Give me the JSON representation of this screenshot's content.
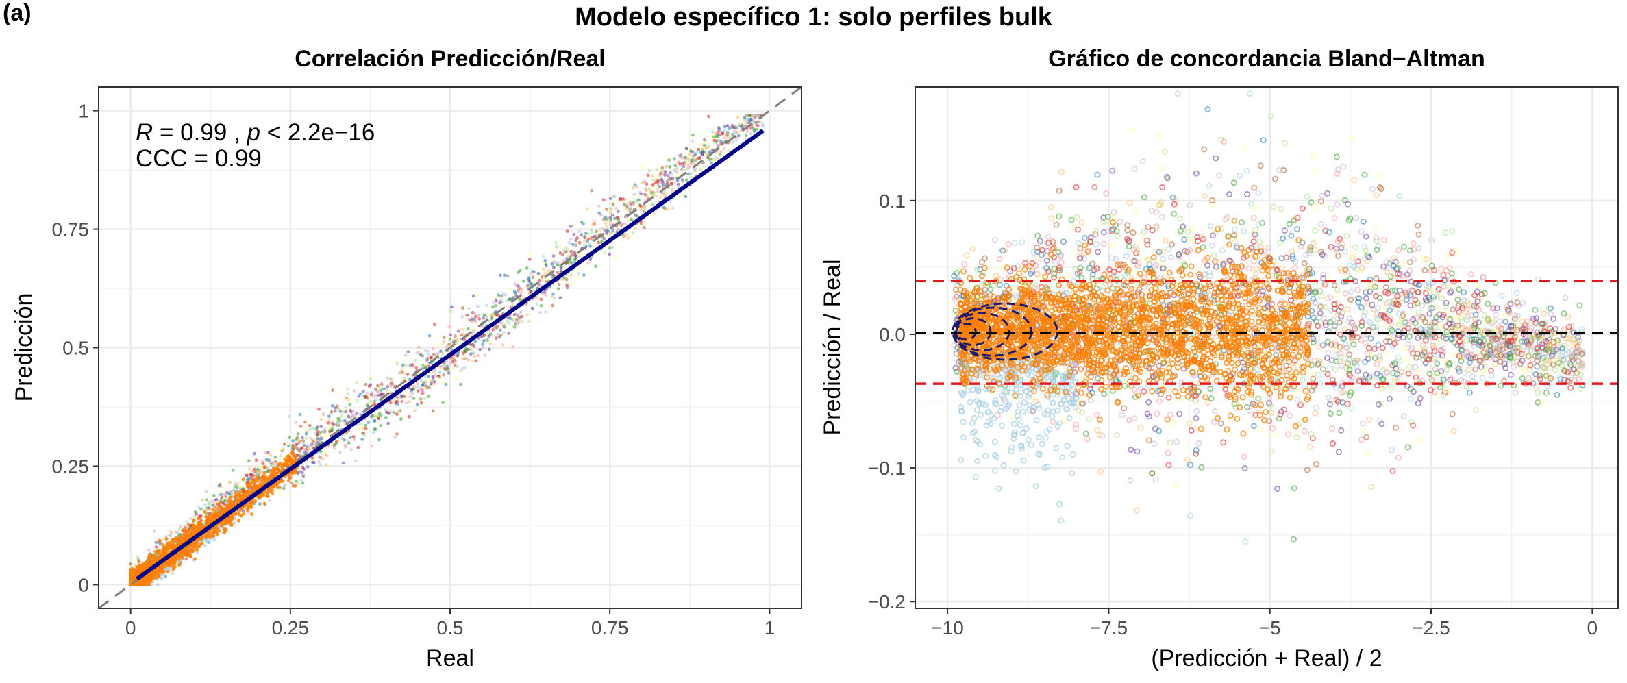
{
  "panel_tag": "(a)",
  "main_title": "Modelo específico 1: solo perfiles bulk",
  "colors": {
    "point_main": "#ff7f00",
    "point_light": "#a6cee3",
    "fit_line": "#00008b",
    "identity_line": "#7f7f7f",
    "loa_line": "#e31a1c",
    "mean_line": "#000000",
    "palette": [
      "#a6cee3",
      "#1f78b4",
      "#b2df8a",
      "#33a02c",
      "#fb9a99",
      "#e31a1c",
      "#fdbf6f",
      "#cab2d6",
      "#6a3d9a",
      "#ffff99",
      "#b15928"
    ]
  },
  "chart_data": [
    {
      "type": "scatter",
      "title": "Correlación Predicción/Real",
      "xlabel": "Real",
      "ylabel": "Predicción",
      "xlim": [
        -0.05,
        1.05
      ],
      "ylim": [
        -0.05,
        1.05
      ],
      "xticks": [
        0,
        0.25,
        0.5,
        0.75,
        1
      ],
      "xtick_labels": [
        "0",
        "0.25",
        "0.5",
        "0.75",
        "1"
      ],
      "yticks": [
        0,
        0.25,
        0.5,
        0.75,
        1
      ],
      "ytick_labels": [
        "0",
        "0.25",
        "0.5",
        "0.75",
        "1"
      ],
      "grid": true,
      "annotation": {
        "r_symbol": "R",
        "r_value": " = 0.99 , ",
        "p_symbol": "p",
        "p_value": " < 2.2e−16",
        "ccc": "CCC = 0.99"
      },
      "fit_line": {
        "x": [
          0.01,
          0.99
        ],
        "y": [
          0.012,
          0.958
        ]
      },
      "identity_line": {
        "slope": 1,
        "intercept": 0
      },
      "point_density": [
        {
          "x_range": [
            0,
            0.2
          ],
          "y_spread": 0.03,
          "dominant": "orange"
        },
        {
          "x_range": [
            0.2,
            0.6
          ],
          "y_spread": 0.05
        },
        {
          "x_range": [
            0.6,
            1.0
          ],
          "y_spread": 0.04
        }
      ]
    },
    {
      "type": "scatter",
      "title": "Gráfico de concordancia Bland−Altman",
      "xlabel": "(Predicción + Real) / 2",
      "ylabel": "Predicción / Real",
      "xlim": [
        -10.5,
        0.4
      ],
      "ylim": [
        -0.205,
        0.185
      ],
      "xticks": [
        -10,
        -7.5,
        -5,
        -2.5,
        0
      ],
      "xtick_labels": [
        "−10",
        "−7.5",
        "−5",
        "−2.5",
        "0"
      ],
      "yticks": [
        -0.2,
        -0.1,
        0.0,
        0.1
      ],
      "ytick_labels": [
        "−0.2",
        "−0.1",
        "0.0",
        "0.1"
      ],
      "grid": true,
      "mean_line": 0.001,
      "upper_loa": 0.04,
      "lower_loa": -0.037
    }
  ]
}
